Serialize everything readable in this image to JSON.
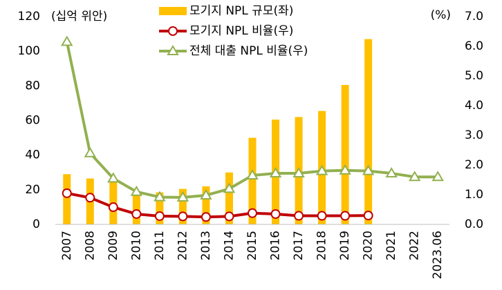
{
  "chart_data": {
    "type": "combo",
    "ylabel": "(십억 위안)",
    "y2label": "(%)",
    "categories": [
      "2007",
      "2008",
      "2009",
      "2010",
      "2011",
      "2012",
      "2013",
      "2014",
      "2015",
      "2016",
      "2017",
      "2018",
      "2019",
      "2020",
      "2021",
      "2022",
      "2023.06"
    ],
    "ylim": [
      0,
      120
    ],
    "yticks": [
      0,
      20,
      40,
      60,
      80,
      100,
      120
    ],
    "y2lim": [
      0,
      7
    ],
    "y2ticks": [
      {
        "value": 0,
        "label": "0.0"
      },
      {
        "value": 1,
        "label": "1.0"
      },
      {
        "value": 2,
        "label": "2.0"
      },
      {
        "value": 3,
        "label": "3.0"
      },
      {
        "value": 4,
        "label": "4.0"
      },
      {
        "value": 5,
        "label": "5.0"
      },
      {
        "value": 6,
        "label": "6.0"
      },
      {
        "value": 7,
        "label": "7.0"
      }
    ],
    "series": [
      {
        "name": "모기지 NPL 규모(좌)",
        "type": "bar",
        "color": "#ffc000",
        "values": [
          29,
          26.5,
          25.5,
          17,
          18.5,
          20.5,
          22,
          30,
          50,
          60.5,
          62,
          65.5,
          80.5,
          107,
          null,
          null,
          null
        ]
      },
      {
        "name": "모기지 NPL 비율(우)",
        "type": "line",
        "axis": "y2",
        "color": "#c00000",
        "marker": "circle",
        "values": [
          1.05,
          0.9,
          0.58,
          0.35,
          0.28,
          0.27,
          0.25,
          0.27,
          0.38,
          0.35,
          0.29,
          0.29,
          0.29,
          0.3,
          null,
          null,
          null
        ]
      },
      {
        "name": "전체 대출 NPL 비율(우)",
        "type": "line",
        "axis": "y2",
        "color": "#92b050",
        "marker": "triangle",
        "values": [
          6.15,
          2.4,
          1.55,
          1.1,
          0.92,
          0.91,
          0.98,
          1.2,
          1.65,
          1.72,
          1.72,
          1.8,
          1.82,
          1.8,
          1.72,
          1.6,
          1.6
        ]
      }
    ]
  }
}
